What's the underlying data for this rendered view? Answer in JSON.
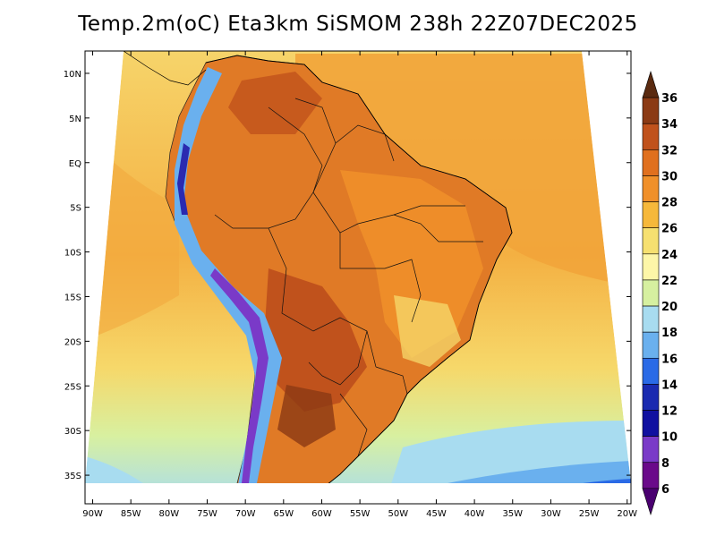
{
  "title": "Temp.2m(oC) Eta3km SiSMOM 238h 22Z07DEC2025",
  "map": {
    "lat_labels": [
      "10N",
      "5N",
      "EQ",
      "5S",
      "10S",
      "15S",
      "20S",
      "25S",
      "30S",
      "35S"
    ],
    "lon_labels": [
      "90W",
      "85W",
      "80W",
      "75W",
      "70W",
      "65W",
      "60W",
      "55W",
      "50W",
      "45W",
      "40W",
      "35W",
      "30W",
      "25W",
      "20W"
    ],
    "lat_values": [
      10,
      5,
      0,
      -5,
      -10,
      -15,
      -20,
      -25,
      -30,
      -35
    ],
    "lon_values": [
      -90,
      -85,
      -80,
      -75,
      -70,
      -65,
      -60,
      -55,
      -50,
      -45,
      -40,
      -35,
      -30,
      -25,
      -20
    ]
  },
  "colorbar": {
    "labels": [
      "36",
      "34",
      "32",
      "30",
      "28",
      "26",
      "24",
      "22",
      "20",
      "18",
      "16",
      "14",
      "12",
      "10",
      "8",
      "6"
    ],
    "colors": [
      "#5a2a10",
      "#8b3a14",
      "#c0521c",
      "#e0701e",
      "#f0902a",
      "#f6b83a",
      "#f6e070",
      "#fdf6a8",
      "#d6f0a0",
      "#a8dcf0",
      "#6ab0ee",
      "#2a6ae6",
      "#1a2ab0",
      "#1010a0",
      "#7a3ac8",
      "#6a0a8a",
      "#4a0070"
    ]
  }
}
